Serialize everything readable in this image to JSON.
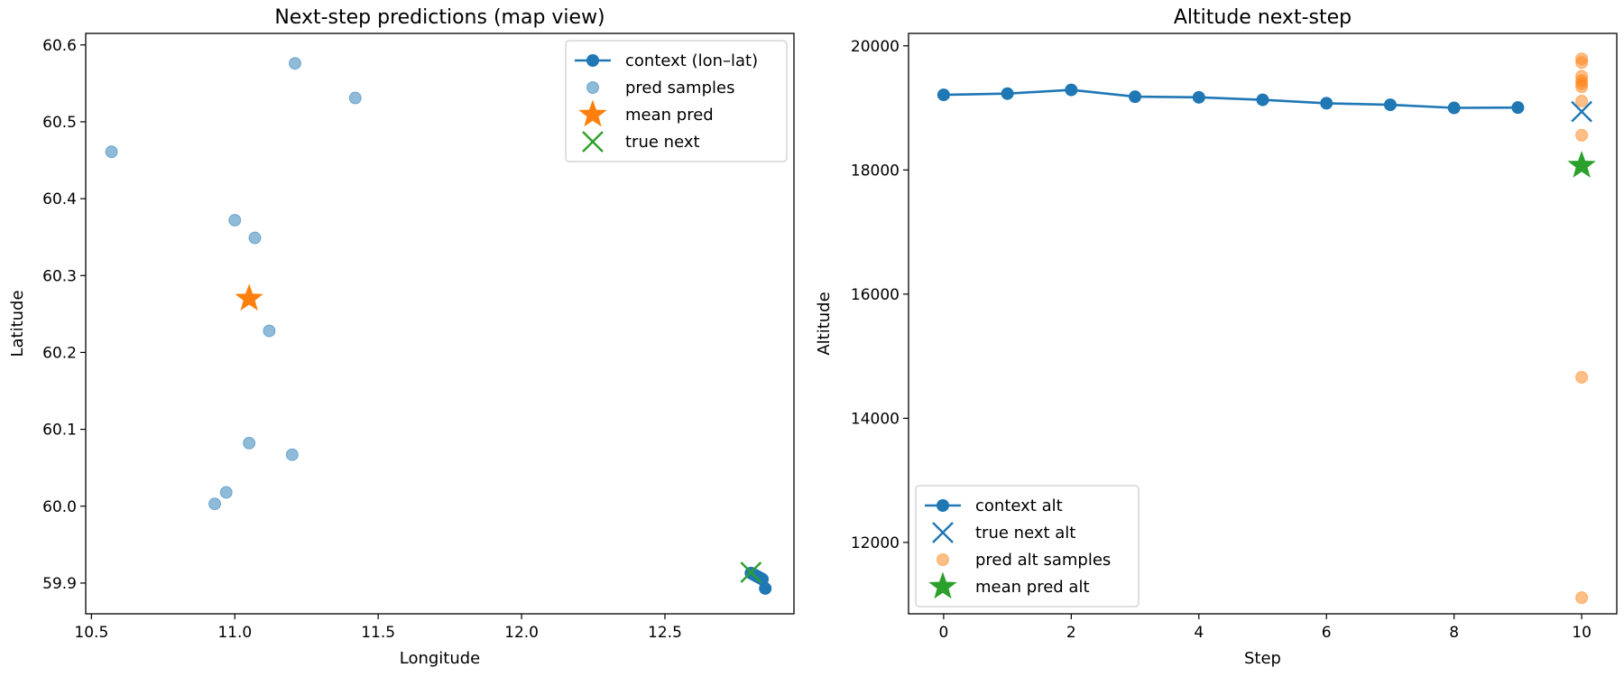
{
  "chart_data": [
    {
      "type": "scatter",
      "title": "Next-step predictions (map view)",
      "xlabel": "Longitude",
      "ylabel": "Latitude",
      "xlim": [
        10.48,
        12.95
      ],
      "ylim": [
        59.86,
        60.615
      ],
      "xticks": [
        10.5,
        11.0,
        11.5,
        12.0,
        12.5
      ],
      "xtick_labels": [
        "10.5",
        "11.0",
        "11.5",
        "12.0",
        "12.5"
      ],
      "yticks": [
        59.9,
        60.0,
        60.1,
        60.2,
        60.3,
        60.4,
        60.5,
        60.6
      ],
      "ytick_labels": [
        "59.9",
        "60.0",
        "60.1",
        "60.2",
        "60.3",
        "60.4",
        "60.5",
        "60.6"
      ],
      "grid": false,
      "legend_position": "top-right",
      "series": [
        {
          "name": "context (lon–lat)",
          "kind": "line-marker",
          "color": "#1f77b4",
          "x": [
            12.8,
            12.805,
            12.81,
            12.815,
            12.82,
            12.825,
            12.83,
            12.835,
            12.84,
            12.85
          ],
          "y": [
            59.913,
            59.912,
            59.911,
            59.91,
            59.909,
            59.908,
            59.907,
            59.906,
            59.905,
            59.893
          ]
        },
        {
          "name": "pred samples",
          "kind": "scatter",
          "color": "#1f77b4",
          "alpha": 0.5,
          "x": [
            11.21,
            11.42,
            10.57,
            11.0,
            11.07,
            11.12,
            11.05,
            11.2,
            10.97,
            10.93
          ],
          "y": [
            60.576,
            60.531,
            60.461,
            60.372,
            60.349,
            60.228,
            60.082,
            60.067,
            60.018,
            60.003
          ]
        },
        {
          "name": "mean pred",
          "kind": "star",
          "color": "#ff7f0e",
          "x": [
            11.05
          ],
          "y": [
            60.27
          ]
        },
        {
          "name": "true next",
          "kind": "x",
          "color": "#2ca02c",
          "x": [
            12.8
          ],
          "y": [
            59.914
          ]
        }
      ]
    },
    {
      "type": "line",
      "title": "Altitude next-step",
      "xlabel": "Step",
      "ylabel": "Altitude",
      "xlim": [
        -0.55,
        10.55
      ],
      "ylim": [
        10850,
        20200
      ],
      "xticks": [
        0,
        2,
        4,
        6,
        8,
        10
      ],
      "xtick_labels": [
        "0",
        "2",
        "4",
        "6",
        "8",
        "10"
      ],
      "yticks": [
        12000,
        14000,
        16000,
        18000,
        20000
      ],
      "ytick_labels": [
        "12000",
        "14000",
        "16000",
        "18000",
        "20000"
      ],
      "grid": false,
      "legend_position": "lower-left",
      "series": [
        {
          "name": "context alt",
          "kind": "line-marker",
          "color": "#1f77b4",
          "x": [
            0,
            1,
            2,
            3,
            4,
            5,
            6,
            7,
            8,
            9
          ],
          "y": [
            19210,
            19230,
            19290,
            19180,
            19170,
            19130,
            19075,
            19050,
            19000,
            19005
          ]
        },
        {
          "name": "true next alt",
          "kind": "x",
          "color": "#1f77b4",
          "x": [
            10
          ],
          "y": [
            18940
          ]
        },
        {
          "name": "pred alt samples",
          "kind": "scatter",
          "color": "#ff7f0e",
          "alpha": 0.5,
          "x": [
            10,
            10,
            10,
            10,
            10,
            10,
            10,
            10,
            10,
            10
          ],
          "y": [
            19790,
            19730,
            19510,
            19440,
            19390,
            19340,
            19110,
            18560,
            14660,
            11110
          ]
        },
        {
          "name": "mean pred alt",
          "kind": "star",
          "color": "#2ca02c",
          "x": [
            10
          ],
          "y": [
            18070
          ]
        }
      ]
    }
  ]
}
